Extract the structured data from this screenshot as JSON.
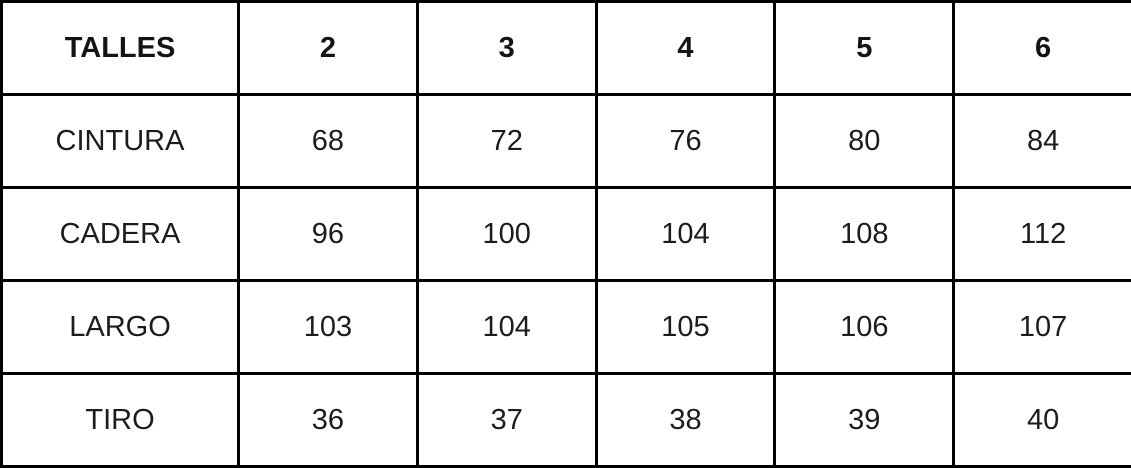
{
  "colors": {
    "border": "#000000",
    "text": "#1c1c1c",
    "background": "#ffffff"
  },
  "chart_data": {
    "type": "table",
    "title": "TALLES",
    "columns": [
      "TALLES",
      "2",
      "3",
      "4",
      "5",
      "6"
    ],
    "rows": [
      {
        "label": "CINTURA",
        "values": [
          "68",
          "72",
          "76",
          "80",
          "84"
        ]
      },
      {
        "label": "CADERA",
        "values": [
          "96",
          "100",
          "104",
          "108",
          "112"
        ]
      },
      {
        "label": "LARGO",
        "values": [
          "103",
          "104",
          "105",
          "106",
          "107"
        ]
      },
      {
        "label": "TIRO",
        "values": [
          "36",
          "37",
          "38",
          "39",
          "40"
        ]
      }
    ]
  }
}
